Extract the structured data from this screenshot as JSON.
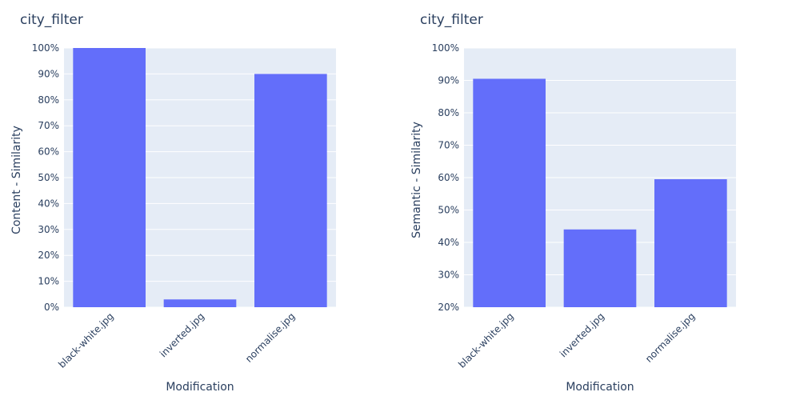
{
  "chart_data": [
    {
      "type": "bar",
      "title": "city_filter",
      "xlabel": "Modification",
      "ylabel": "Content - Similarity",
      "categories": [
        "black-white.jpg",
        "inverted.jpg",
        "normalise.jpg"
      ],
      "values": [
        100,
        3,
        90
      ],
      "ylim": [
        0,
        100
      ],
      "yticks": [
        0,
        10,
        20,
        30,
        40,
        50,
        60,
        70,
        80,
        90,
        100
      ],
      "ytick_suffix": "%",
      "grid": true,
      "bar_color": "#636efa",
      "plot_bg": "#e5ecf6"
    },
    {
      "type": "bar",
      "title": "city_filter",
      "xlabel": "Modification",
      "ylabel": "Semantic - Similarity",
      "categories": [
        "black-white.jpg",
        "inverted.jpg",
        "normalise.jpg"
      ],
      "values": [
        90.5,
        44,
        59.5
      ],
      "ylim": [
        20,
        100
      ],
      "yticks": [
        20,
        30,
        40,
        50,
        60,
        70,
        80,
        90,
        100
      ],
      "ytick_suffix": "%",
      "grid": true,
      "bar_color": "#636efa",
      "plot_bg": "#e5ecf6"
    }
  ]
}
